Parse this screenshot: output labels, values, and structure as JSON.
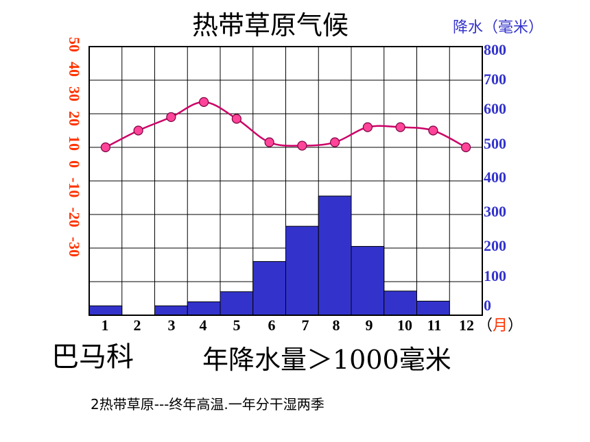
{
  "title": "热带草原气候",
  "rain_axis_unit": "降水（毫米）",
  "month_unit": "（月）",
  "station": "巴马科",
  "annual_precip": "年降水量＞1000毫米",
  "caption": "2热带草原---终年高温.一年分干湿两季",
  "chart_data": {
    "type": "bar+line",
    "categories": [
      "1",
      "2",
      "3",
      "4",
      "5",
      "6",
      "7",
      "8",
      "9",
      "10",
      "11",
      "12"
    ],
    "series": [
      {
        "kind": "bar",
        "axis": "right",
        "values": [
          28,
          0,
          28,
          40,
          70,
          160,
          265,
          355,
          205,
          72,
          42,
          0
        ],
        "color": "#3333cc"
      },
      {
        "kind": "line",
        "axis": "left",
        "values": [
          20,
          25,
          29,
          33.5,
          28.5,
          21.5,
          20.5,
          21.5,
          26,
          26,
          25,
          20
        ],
        "color": "#cc0066",
        "marker_color": "#ff4499"
      }
    ],
    "left_axis": {
      "ticks": [
        "50",
        "40",
        "30",
        "20",
        "10",
        "0",
        "-10",
        "-20",
        "-30"
      ],
      "range": [
        -30,
        50
      ],
      "color": "#ff3300"
    },
    "right_axis": {
      "ticks": [
        "800",
        "700",
        "600",
        "500",
        "400",
        "300",
        "200",
        "100",
        "0"
      ],
      "range": [
        0,
        800
      ],
      "color": "#3333cc"
    },
    "grid": true
  }
}
